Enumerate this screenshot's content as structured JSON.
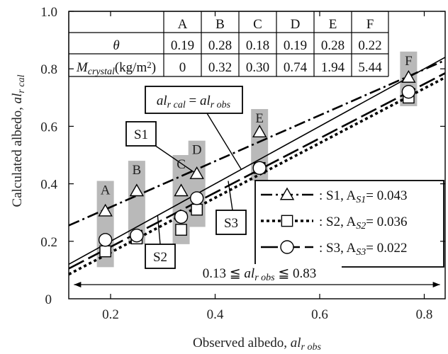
{
  "chart_data": {
    "type": "scatter",
    "xlabel": "Observed albedo, al",
    "xlabel_sub": "r obs",
    "ylabel": "Calculated albedo, al",
    "ylabel_sub": "r cal",
    "xlim": [
      0.12,
      0.84
    ],
    "ylim": [
      0.0,
      1.0
    ],
    "x_ticks": [
      0.2,
      0.4,
      0.6,
      0.8
    ],
    "x_tick_labels": [
      "0.2",
      "0.4",
      "0.6",
      "0.8"
    ],
    "y_ticks": [
      0.2,
      0.4,
      0.6,
      0.8,
      1.0
    ],
    "y_tick_labels": [
      "0.2",
      "0.4",
      "0.6",
      "0.8",
      "1.0"
    ],
    "y_zero_label": "0",
    "sample_labels": [
      "A",
      "B",
      "C",
      "D",
      "E",
      "F"
    ],
    "sample_x": [
      0.19,
      0.25,
      0.335,
      0.365,
      0.485,
      0.77
    ],
    "gray_boxes": [
      {
        "label": "A",
        "x": 0.19,
        "y_low": 0.11,
        "y_high": 0.41
      },
      {
        "label": "B",
        "x": 0.25,
        "y_low": 0.19,
        "y_high": 0.48
      },
      {
        "label": "C",
        "x": 0.335,
        "y_low": 0.19,
        "y_high": 0.5
      },
      {
        "label": "D",
        "x": 0.365,
        "y_low": 0.25,
        "y_high": 0.55
      },
      {
        "label": "E",
        "x": 0.485,
        "y_low": 0.41,
        "y_high": 0.66
      },
      {
        "label": "F",
        "x": 0.77,
        "y_low": 0.67,
        "y_high": 0.86
      }
    ],
    "series": [
      {
        "name": "S1",
        "marker": "triangle",
        "values": [
          0.305,
          0.375,
          0.375,
          0.435,
          0.58,
          0.77
        ],
        "fit": [
          0.255,
          0.83
        ]
      },
      {
        "name": "S2",
        "marker": "square",
        "values": [
          0.165,
          0.21,
          0.24,
          0.31,
          0.455,
          0.7
        ],
        "fit": [
          0.085,
          0.77
        ]
      },
      {
        "name": "S3",
        "marker": "circle",
        "values": [
          0.205,
          0.22,
          0.285,
          0.35,
          0.455,
          0.72
        ],
        "fit": [
          0.105,
          0.785
        ]
      }
    ],
    "one_to_one": {
      "label": "al",
      "sub1": "r cal",
      "mid": " = al",
      "sub2": "r obs"
    },
    "legend": [
      {
        "series": "S1",
        "text": ": S1, A",
        "sub": "S1",
        "value": "= 0.043"
      },
      {
        "series": "S2",
        "text": ": S2, A",
        "sub": "S2",
        "value": "= 0.036"
      },
      {
        "series": "S3",
        "text": ": S3, A",
        "sub": "S3",
        "value": "= 0.022"
      }
    ],
    "callouts": [
      "S1",
      "S2",
      "S3"
    ],
    "range_text": {
      "left": "0.13 ≦ al",
      "sub": "r obs",
      "right": " ≦ 0.83"
    },
    "table": {
      "header": [
        "A",
        "B",
        "C",
        "D",
        "E",
        "F"
      ],
      "theta_label": "θ",
      "theta": [
        "0.19",
        "0.28",
        "0.18",
        "0.19",
        "0.28",
        "0.22"
      ],
      "mass_label": "M",
      "mass_sub": "crystal",
      "mass_unit": "(kg/m",
      "mass_unit_sup": "2",
      "mass_unit_end": ")",
      "mass": [
        "0",
        "0.32",
        "0.30",
        "0.74",
        "1.94",
        "5.44"
      ]
    }
  }
}
